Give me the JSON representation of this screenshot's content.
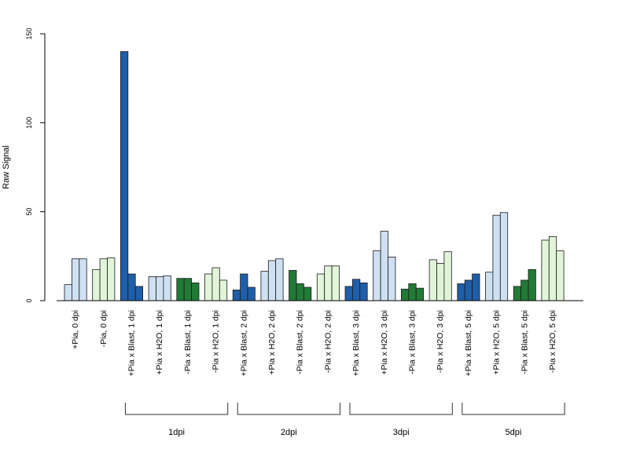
{
  "chart_data": {
    "type": "bar",
    "ylabel": "Raw Signal",
    "ylim": [
      0,
      150
    ],
    "yticks": [
      0,
      50,
      100,
      150
    ],
    "grid": false,
    "legend": "none",
    "categories": [
      "+Pia, 0 dpi",
      "-Pia, 0 dpi",
      "+Pia x Blast, 1 dpi",
      "+Pia x H2O, 1 dpi",
      "-Pia x Blast, 1 dpi",
      "-Pia x H2O, 1 dpi",
      "+Pia x Blast, 2 dpi",
      "+Pia x H2O, 2 dpi",
      "-Pia x Blast, 2 dpi",
      "-Pia x H2O, 2 dpi",
      "+Pia x Blast, 3 dpi",
      "+Pia x H2O, 3 dpi",
      "-Pia x Blast, 3 dpi",
      "-Pia x H2O, 3 dpi",
      "+Pia x Blast, 5 dpi",
      "+Pia x H2O, 5 dpi",
      "-Pia x Blast, 5 dpi",
      "-Pia x H2O, 5 dpi"
    ],
    "values": [
      [
        9,
        23.5,
        23.5
      ],
      [
        17.5,
        23.5,
        24
      ],
      [
        140,
        15,
        8
      ],
      [
        13.5,
        13.5,
        14
      ],
      [
        12.5,
        12.5,
        10
      ],
      [
        15,
        18.5,
        11.5
      ],
      [
        6,
        15,
        7.5
      ],
      [
        16.5,
        22.5,
        23.5
      ],
      [
        17,
        9.5,
        7.5
      ],
      [
        15,
        19.5,
        19.5
      ],
      [
        8,
        12,
        10
      ],
      [
        28,
        39,
        24.5
      ],
      [
        6.5,
        9.5,
        7
      ],
      [
        23,
        21,
        27.5
      ],
      [
        9.5,
        11.5,
        15
      ],
      [
        16,
        48,
        49.5
      ],
      [
        8,
        11.5,
        17.5
      ],
      [
        34,
        36,
        28
      ]
    ],
    "colors": [
      "#cfe0f3",
      "#e2f5da",
      "#1f5ea8",
      "#cfe0f3",
      "#217a35",
      "#e2f5da",
      "#1f5ea8",
      "#cfe0f3",
      "#217a35",
      "#e2f5da",
      "#1f5ea8",
      "#cfe0f3",
      "#217a35",
      "#e2f5da",
      "#1f5ea8",
      "#cfe0f3",
      "#217a35",
      "#e2f5da"
    ],
    "groups": [
      {
        "label": "1dpi",
        "start": 2,
        "end": 5
      },
      {
        "label": "2dpi",
        "start": 6,
        "end": 9
      },
      {
        "label": "3dpi",
        "start": 10,
        "end": 13
      },
      {
        "label": "5dpi",
        "start": 14,
        "end": 17
      }
    ]
  }
}
